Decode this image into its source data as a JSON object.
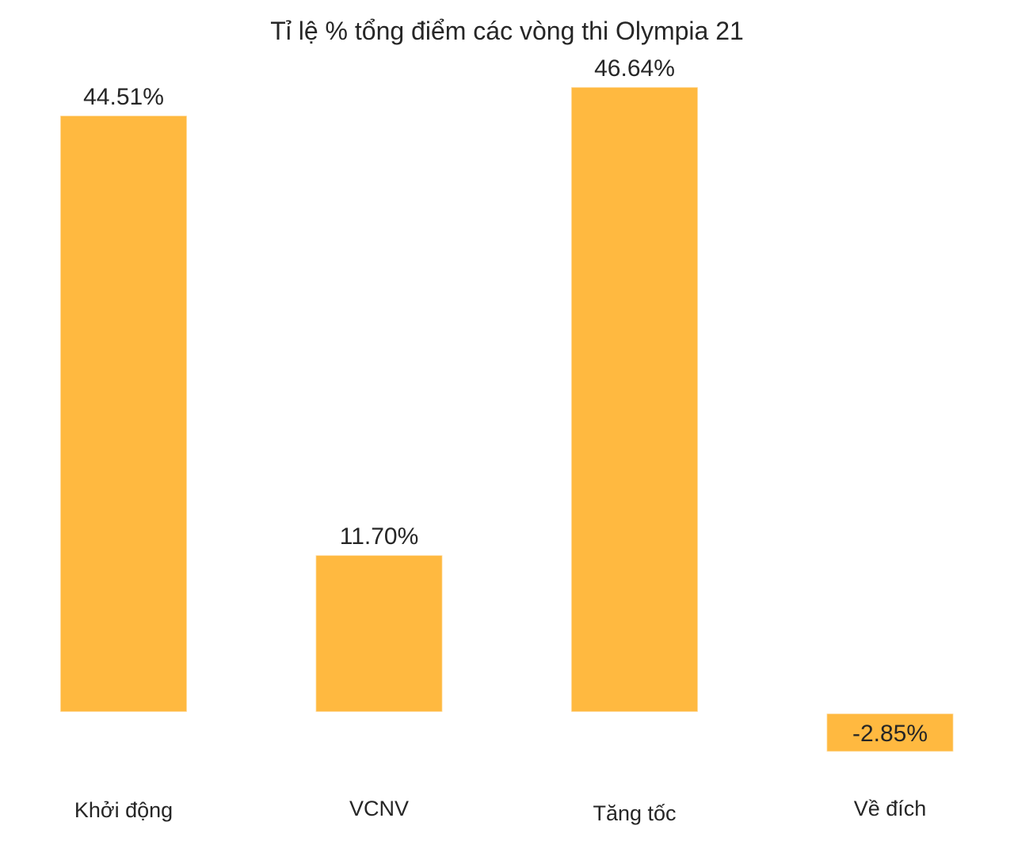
{
  "chart_data": {
    "type": "bar",
    "title": "Tỉ lệ % tổng điểm các vòng thi Olympia 21",
    "categories": [
      "Khởi động",
      "VCNV",
      "Tăng tốc",
      "Về đích"
    ],
    "values": [
      44.51,
      11.7,
      46.64,
      -2.85
    ],
    "value_labels": [
      "44.51%",
      "11.70%",
      "46.64%",
      "-2.85%"
    ],
    "xlabel": "",
    "ylabel": "",
    "grid": false,
    "bar_color": "#ffb940",
    "text_color": "#262626"
  }
}
